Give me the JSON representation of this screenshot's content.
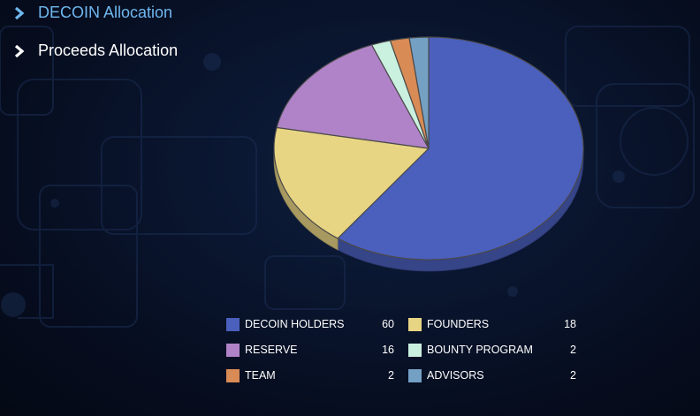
{
  "nav": {
    "items": [
      {
        "label": "DECOIN Allocation",
        "active": true
      },
      {
        "label": "Proceeds Allocation",
        "active": false
      }
    ]
  },
  "colors": {
    "active_nav": "#6fb7ee",
    "inactive_nav": "#ffffff",
    "background": "#0a1630"
  },
  "chart_data": {
    "type": "pie",
    "style": "3d",
    "legend_placement": "bottom",
    "categories": [
      "DECOIN HOLDERS",
      "FOUNDERS",
      "RESERVE",
      "BOUNTY PROGRAM",
      "TEAM",
      "ADVISORS"
    ],
    "values": [
      60,
      18,
      16,
      2,
      2,
      2
    ],
    "colors": [
      "#4b5fbd",
      "#e8d584",
      "#b083c8",
      "#caf0e0",
      "#d88b55",
      "#74a0c4"
    ]
  },
  "legend": [
    {
      "label": "DECOIN HOLDERS",
      "value": "60",
      "color": "#4b5fbd"
    },
    {
      "label": "FOUNDERS",
      "value": "18",
      "color": "#e8d584"
    },
    {
      "label": "RESERVE",
      "value": "16",
      "color": "#b083c8"
    },
    {
      "label": "BOUNTY PROGRAM",
      "value": "2",
      "color": "#caf0e0"
    },
    {
      "label": "TEAM",
      "value": "2",
      "color": "#d88b55"
    },
    {
      "label": "ADVISORS",
      "value": "2",
      "color": "#74a0c4"
    }
  ]
}
